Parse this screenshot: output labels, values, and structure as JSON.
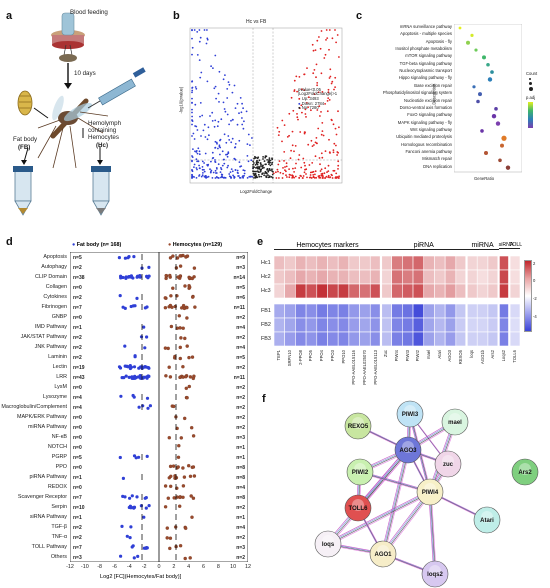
{
  "panels": {
    "a": "a",
    "b": "b",
    "c": "c",
    "d": "d",
    "e": "e",
    "f": "f"
  },
  "panel_a": {
    "blood_feeding": "Blood feeding",
    "days": "10 days",
    "fat_body": "Fat body",
    "fb_abbr": "(FB)",
    "hemolymph": "Hemolymph",
    "containing": "containing",
    "hemocytes": "Hemocytes",
    "hc_abbr": "(Hc)"
  },
  "panel_b": {
    "title": "Hc vs FB",
    "ylabel": "-log10(pvalue)",
    "xlabel": "Log2FoldChange",
    "legend": [
      "pvalue<0.05",
      "|Log2FoldChange|>1",
      "Up: 3493",
      "Down: 2784",
      "No: 7280"
    ]
  },
  "panel_c": {
    "ylabel": "Description",
    "xlabel": "GeneRatio",
    "count_title": "Count",
    "padj_title": "p.adj",
    "pathways": [
      "mRNA surveillance pathway",
      "Apoptosis - multiple species",
      "Apoptosis - fly",
      "Inositol phosphate metabolism",
      "mTOR signaling pathway",
      "TGF-beta signaling pathway",
      "Nucleocytoplasmic transport",
      "Hippo signaling pathway - fly",
      "Base excision repair",
      "Phosphatidylinositol signaling system",
      "Nucleotide excision repair",
      "Dorso-ventral axis formation",
      "FoxO signaling pathway",
      "MAPK signaling pathway - fly",
      "Wnt signaling pathway",
      "Ubiquitin mediated proteolysis",
      "Homologous recombination",
      "Fanconi anemia pathway",
      "Mismatch repair",
      "DNA replication"
    ]
  },
  "panel_d": {
    "fb_header": "Fat body (n= 168)",
    "hc_header": "Hemocytes (n=129)",
    "xlabel": "Log2 [FC](Hemocytes/Fat body)]",
    "ticks": [
      "-12",
      "-10",
      "-8",
      "-6",
      "-4",
      "-2",
      "0",
      "2",
      "4",
      "6",
      "8",
      "10",
      "12"
    ],
    "rows": [
      {
        "name": "Apoptosis",
        "left": "n=5",
        "right": "n=9"
      },
      {
        "name": "Autophagy",
        "left": "n=2",
        "right": "n=3"
      },
      {
        "name": "CLIP Domain",
        "left": "n=38",
        "right": "n=14"
      },
      {
        "name": "Collagen",
        "left": "n=0",
        "right": "n=5"
      },
      {
        "name": "Cytokines",
        "left": "n=2",
        "right": "n=6"
      },
      {
        "name": "Fibrinogen",
        "left": "n=7",
        "right": "n=11"
      },
      {
        "name": "GNBP",
        "left": "n=0",
        "right": "n=2"
      },
      {
        "name": "IMD Pathway",
        "left": "n=1",
        "right": "n=4"
      },
      {
        "name": "JAK/STAT Pathway",
        "left": "n=2",
        "right": "n=2"
      },
      {
        "name": "JNK Pathway",
        "left": "n=2",
        "right": "n=4"
      },
      {
        "name": "Laminin",
        "left": "n=2",
        "right": "n=5"
      },
      {
        "name": "Lectin",
        "left": "n=19",
        "right": "n=2"
      },
      {
        "name": "LRR",
        "left": "n=43",
        "right": "n=11"
      },
      {
        "name": "LysM",
        "left": "n=0",
        "right": "n=2"
      },
      {
        "name": "Lysozyme",
        "left": "n=4",
        "right": "n=2"
      },
      {
        "name": "Macroglobulin/Complement",
        "left": "n=4",
        "right": "n=2"
      },
      {
        "name": "MAPK/ERK Pathway",
        "left": "n=0",
        "right": "n=2"
      },
      {
        "name": "miRNA Pathway",
        "left": "n=0",
        "right": "n=2"
      },
      {
        "name": "NF-κB",
        "left": "n=0",
        "right": "n=3"
      },
      {
        "name": "NOTCH",
        "left": "n=0",
        "right": "n=1"
      },
      {
        "name": "PGRP",
        "left": "n=5",
        "right": "n=1"
      },
      {
        "name": "PPO",
        "left": "n=0",
        "right": "n=8"
      },
      {
        "name": "piRNA Pathway",
        "left": "n=1",
        "right": "n=8"
      },
      {
        "name": "REDOX",
        "left": "n=0",
        "right": "n=4"
      },
      {
        "name": "Scavenger Receptor",
        "left": "n=7",
        "right": "n=8"
      },
      {
        "name": "Serpin",
        "left": "n=10",
        "right": "n=2"
      },
      {
        "name": "siRNA Pathway",
        "left": "n=1",
        "right": "n=1"
      },
      {
        "name": "TGF-β",
        "left": "n=2",
        "right": "n=4"
      },
      {
        "name": "TNF-α",
        "left": "n=2",
        "right": "n=2"
      },
      {
        "name": "TOLL Pathway",
        "left": "n=7",
        "right": "n=3"
      },
      {
        "name": "Others",
        "left": "n=3",
        "right": "n=2"
      }
    ]
  },
  "panel_e": {
    "groups": [
      "Hemocytes markers",
      "piRNA",
      "miRNA",
      "siRNA",
      "TOLL"
    ],
    "rows": [
      "Hc1",
      "Hc2",
      "Hc3",
      "FB1",
      "FB2",
      "FB3"
    ],
    "columns": [
      "TEP1",
      "SRPN10",
      "2-PPO8",
      "PPO5",
      "PPO4",
      "PPO3",
      "PPO10",
      "PPO-AAEL015116",
      "PPO-AAEL025070",
      "PPO-AAEL015113",
      "Zuc",
      "PIWI4",
      "PIWI3",
      "PIWI2",
      "mael",
      "Atari",
      "AGO3",
      "REXO5",
      "loqs",
      "AGO1b",
      "Ars2",
      "Loqs2",
      "TOLL6"
    ],
    "scale": [
      "2",
      "0",
      "-2",
      "-4"
    ]
  },
  "panel_f": {
    "nodes": [
      "PIWI3",
      "mael",
      "REXO5",
      "AGO3",
      "zuc",
      "Ars2",
      "PIWI2",
      "PIWI4",
      "TOLL6",
      "loqs",
      "Atari",
      "AGO1",
      "loqs2"
    ]
  },
  "colors": {
    "blue": "#2f3fd6",
    "red": "#e02020",
    "dot_brown": "#9a4a2c",
    "heat_red": "#b8232c",
    "heat_blue": "#3a43d8"
  }
}
